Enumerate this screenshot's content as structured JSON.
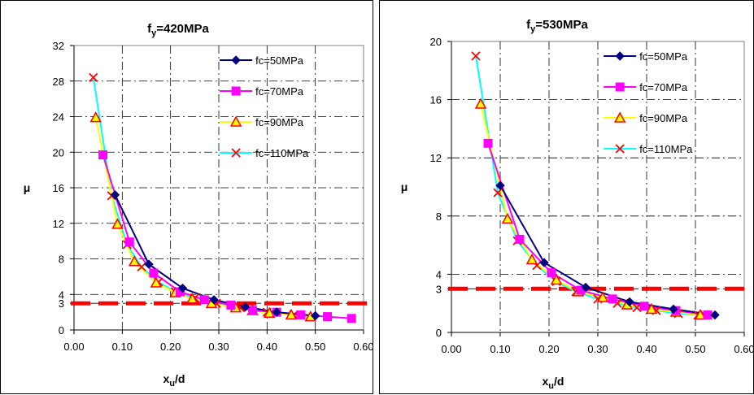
{
  "chart_data": [
    {
      "type": "line",
      "title": "f",
      "title_sub": "y",
      "title_rest": "=420MPa",
      "xlabel": "x",
      "xlabel_sub": "u",
      "xlabel_rest": "/d",
      "ylabel": "μ",
      "xlim": [
        0,
        0.6
      ],
      "ylim": [
        0,
        32
      ],
      "xticks": [
        "0.00",
        "0.10",
        "0.20",
        "0.30",
        "0.40",
        "0.50",
        "0.60"
      ],
      "yticks": [
        "0",
        "3",
        "4",
        "8",
        "12",
        "16",
        "20",
        "24",
        "28",
        "32"
      ],
      "grid": true,
      "legend_position": "top-right",
      "reference_line": {
        "y": 3
      },
      "series": [
        {
          "name": "fc=50MPa",
          "color": "#000080",
          "marker": "diamond",
          "x": [
            0.085,
            0.155,
            0.225,
            0.29,
            0.355,
            0.42,
            0.5
          ],
          "y": [
            15.2,
            7.4,
            4.7,
            3.4,
            2.6,
            2.0,
            1.6
          ]
        },
        {
          "name": "fc=70MPa",
          "color": "#ff00ff",
          "marker": "square",
          "x": [
            0.06,
            0.115,
            0.165,
            0.22,
            0.27,
            0.325,
            0.37,
            0.42,
            0.47,
            0.525,
            0.575
          ],
          "y": [
            19.7,
            9.9,
            6.4,
            4.3,
            3.4,
            2.8,
            2.2,
            2.0,
            1.7,
            1.5,
            1.3
          ]
        },
        {
          "name": "fc=90MPa",
          "color": "#ffff00",
          "edge": "#ff0000",
          "marker": "triangle",
          "x": [
            0.045,
            0.09,
            0.125,
            0.17,
            0.21,
            0.245,
            0.285,
            0.335,
            0.37,
            0.405,
            0.45,
            0.49
          ],
          "y": [
            23.9,
            11.9,
            7.7,
            5.3,
            4.2,
            3.5,
            3.0,
            2.5,
            2.2,
            1.9,
            1.7,
            1.5
          ]
        },
        {
          "name": "fc=110MPa",
          "color": "#00ffff",
          "edge": "#ff0000",
          "marker": "x",
          "x": [
            0.04,
            0.078,
            0.11,
            0.14,
            0.175,
            0.21,
            0.25,
            0.295,
            0.345,
            0.4,
            0.455
          ],
          "y": [
            28.4,
            15.1,
            9.6,
            7.1,
            5.4,
            4.3,
            3.6,
            3.0,
            2.5,
            2.0,
            1.7
          ]
        }
      ]
    },
    {
      "type": "line",
      "title": "f",
      "title_sub": "y",
      "title_rest": "=530MPa",
      "xlabel": "x",
      "xlabel_sub": "u",
      "xlabel_rest": "/d",
      "ylabel": "μ",
      "xlim": [
        0,
        0.6
      ],
      "ylim": [
        0,
        20
      ],
      "xticks": [
        "0.00",
        "0.10",
        "0.20",
        "0.30",
        "0.40",
        "0.50",
        "0.60"
      ],
      "yticks": [
        "0",
        "3",
        "4",
        "8",
        "12",
        "16",
        "20"
      ],
      "grid": true,
      "legend_position": "top-right",
      "reference_line": {
        "y": 3
      },
      "series": [
        {
          "name": "fc=50MPa",
          "color": "#000080",
          "marker": "diamond",
          "x": [
            0.1,
            0.19,
            0.275,
            0.365,
            0.455,
            0.54
          ],
          "y": [
            10.1,
            4.8,
            3.1,
            2.1,
            1.6,
            1.2
          ]
        },
        {
          "name": "fc=70MPa",
          "color": "#ff00ff",
          "marker": "square",
          "x": [
            0.075,
            0.14,
            0.205,
            0.265,
            0.33,
            0.395,
            0.46,
            0.525
          ],
          "y": [
            13.0,
            6.4,
            4.1,
            2.9,
            2.3,
            1.8,
            1.5,
            1.2
          ]
        },
        {
          "name": "fc=90MPa",
          "color": "#ffff00",
          "edge": "#ff0000",
          "marker": "triangle",
          "x": [
            0.06,
            0.115,
            0.165,
            0.215,
            0.26,
            0.31,
            0.36,
            0.41,
            0.46,
            0.51
          ],
          "y": [
            15.7,
            7.8,
            5.0,
            3.6,
            2.8,
            2.4,
            1.9,
            1.6,
            1.4,
            1.2
          ]
        },
        {
          "name": "fc=110MPa",
          "color": "#00ffff",
          "edge": "#ff0000",
          "marker": "x",
          "x": [
            0.05,
            0.095,
            0.135,
            0.175,
            0.215,
            0.255,
            0.3,
            0.34,
            0.38,
            0.42,
            0.465,
            0.505
          ],
          "y": [
            19.0,
            9.6,
            6.3,
            4.6,
            3.5,
            2.8,
            2.3,
            2.0,
            1.7,
            1.5,
            1.3,
            1.2
          ]
        }
      ]
    }
  ]
}
